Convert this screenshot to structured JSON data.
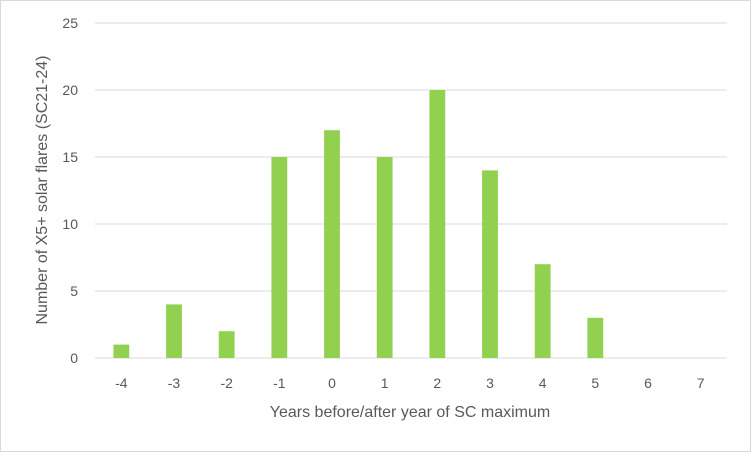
{
  "chart_data": {
    "type": "bar",
    "title": "",
    "xlabel": "Years before/after year of SC maximum",
    "ylabel": "Number of X5+ solar flares (SC21-24)",
    "categories": [
      "-4",
      "-3",
      "-2",
      "-1",
      "0",
      "1",
      "2",
      "3",
      "4",
      "5",
      "6",
      "7"
    ],
    "series": [
      {
        "values": [
          1,
          4,
          2,
          15,
          17,
          15,
          20,
          14,
          7,
          3,
          0,
          0
        ]
      }
    ],
    "ylim": [
      0,
      25
    ],
    "yticks": [
      "0",
      "5",
      "10",
      "15",
      "20",
      "25"
    ],
    "grid": true,
    "legend": "none",
    "colors": {
      "bar": "#92d050",
      "grid": "#d9d9d9",
      "text": "#595959"
    }
  }
}
